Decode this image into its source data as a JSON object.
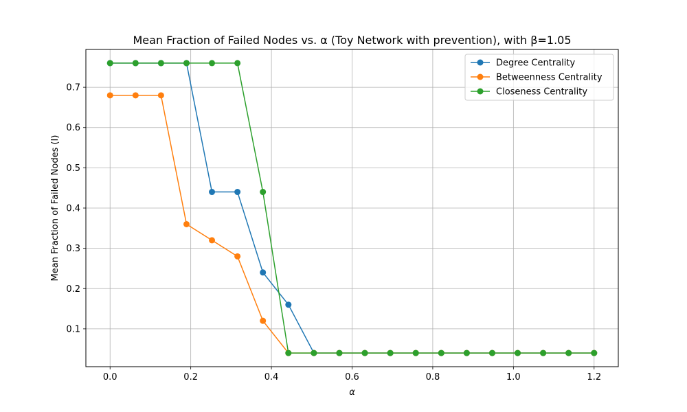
{
  "chart_data": {
    "type": "line",
    "title": "Mean Fraction of Failed Nodes vs. α (Toy Network with prevention), with β=1.05",
    "xlabel": "α",
    "ylabel": "Mean Fraction of Failed Nodes (I)",
    "xlim": [
      -0.06,
      1.26
    ],
    "ylim": [
      0.006,
      0.794
    ],
    "xticks": [
      0.0,
      0.2,
      0.4,
      0.6,
      0.8,
      1.0,
      1.2
    ],
    "xtick_labels": [
      "0.0",
      "0.2",
      "0.4",
      "0.6",
      "0.8",
      "1.0",
      "1.2"
    ],
    "yticks": [
      0.1,
      0.2,
      0.3,
      0.4,
      0.5,
      0.6,
      0.7
    ],
    "ytick_labels": [
      "0.1",
      "0.2",
      "0.3",
      "0.4",
      "0.5",
      "0.6",
      "0.7"
    ],
    "grid": true,
    "legend_position": "top-right",
    "x": [
      0.0,
      0.0632,
      0.1263,
      0.1895,
      0.2526,
      0.3158,
      0.3789,
      0.4421,
      0.5053,
      0.5684,
      0.6316,
      0.6947,
      0.7579,
      0.8211,
      0.8842,
      0.9474,
      1.0105,
      1.0737,
      1.1368,
      1.2
    ],
    "series": [
      {
        "name": "Degree Centrality",
        "color": "#1f77b4",
        "values": [
          0.76,
          0.76,
          0.76,
          0.76,
          0.44,
          0.44,
          0.24,
          0.16,
          0.04,
          0.04,
          0.04,
          0.04,
          0.04,
          0.04,
          0.04,
          0.04,
          0.04,
          0.04,
          0.04,
          0.04
        ]
      },
      {
        "name": "Betweenness Centrality",
        "color": "#ff7f0e",
        "values": [
          0.68,
          0.68,
          0.68,
          0.36,
          0.32,
          0.28,
          0.12,
          0.04,
          0.04,
          0.04,
          0.04,
          0.04,
          0.04,
          0.04,
          0.04,
          0.04,
          0.04,
          0.04,
          0.04,
          0.04
        ]
      },
      {
        "name": "Closeness Centrality",
        "color": "#2ca02c",
        "values": [
          0.76,
          0.76,
          0.76,
          0.76,
          0.76,
          0.76,
          0.44,
          0.04,
          0.04,
          0.04,
          0.04,
          0.04,
          0.04,
          0.04,
          0.04,
          0.04,
          0.04,
          0.04,
          0.04,
          0.04
        ]
      }
    ]
  }
}
